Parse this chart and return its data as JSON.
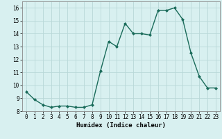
{
  "x": [
    0,
    1,
    2,
    3,
    4,
    5,
    6,
    7,
    8,
    9,
    10,
    11,
    12,
    13,
    14,
    15,
    16,
    17,
    18,
    19,
    20,
    21,
    22,
    23
  ],
  "y": [
    9.5,
    8.9,
    8.5,
    8.3,
    8.4,
    8.4,
    8.3,
    8.3,
    8.5,
    11.1,
    13.4,
    13.0,
    14.8,
    14.0,
    14.0,
    13.9,
    15.8,
    15.8,
    16.0,
    15.1,
    12.5,
    10.7,
    9.8,
    9.8
  ],
  "line_color": "#1a6b5a",
  "marker": "D",
  "marker_size": 2.0,
  "line_width": 1.0,
  "xlabel": "Humidex (Indice chaleur)",
  "ylim": [
    8,
    16.5
  ],
  "xlim": [
    -0.5,
    23.5
  ],
  "yticks": [
    8,
    9,
    10,
    11,
    12,
    13,
    14,
    15,
    16
  ],
  "xticks": [
    0,
    1,
    2,
    3,
    4,
    5,
    6,
    7,
    8,
    9,
    10,
    11,
    12,
    13,
    14,
    15,
    16,
    17,
    18,
    19,
    20,
    21,
    22,
    23
  ],
  "grid_color": "#b8d8d8",
  "background_color": "#d8f0f0",
  "xlabel_fontsize": 6.5,
  "tick_fontsize": 5.5,
  "spine_color": "#888888"
}
